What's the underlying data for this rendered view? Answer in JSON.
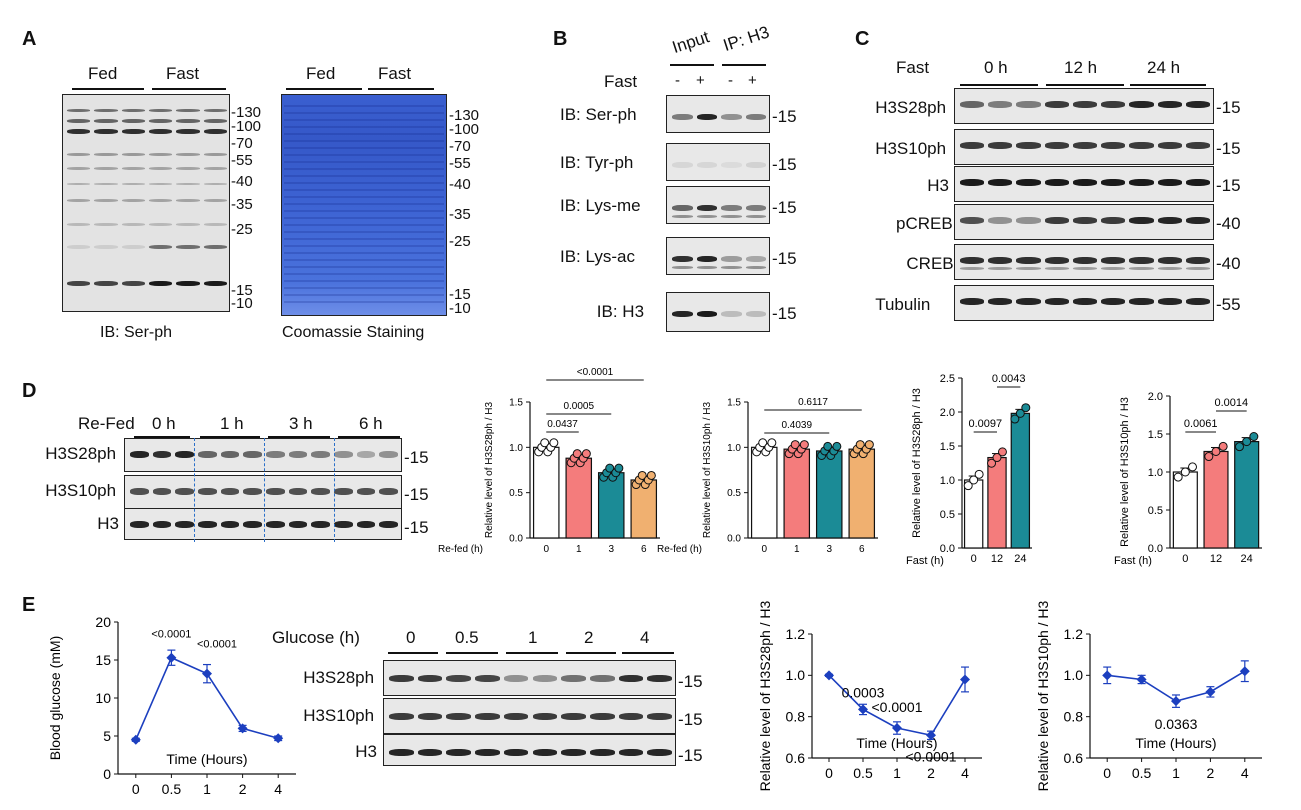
{
  "panels": {
    "A": "A",
    "B": "B",
    "C": "C",
    "D": "D",
    "E": "E"
  },
  "panelA": {
    "fed": "Fed",
    "fast": "Fast",
    "fed2": "Fed",
    "fast2": "Fast",
    "caption1": "IB: Ser-ph",
    "caption2": "Coomassie Staining",
    "markers": [
      "-130",
      "-100",
      "-70",
      "-55",
      "-40",
      "-35",
      "-25",
      "-15",
      "-10"
    ],
    "markers2": [
      "-130",
      "-100",
      "-70",
      "-55",
      "-40",
      "-35",
      "-25",
      "-15",
      "-10"
    ]
  },
  "panelB": {
    "input": "Input",
    "ip": "IP: H3",
    "fast": "Fast",
    "signs": [
      "-",
      "+",
      "-",
      "+"
    ],
    "rows": [
      "IB: Ser-ph",
      "IB: Tyr-ph",
      "IB: Lys-me",
      "IB: Lys-ac",
      "IB: H3"
    ],
    "mw": [
      "-15",
      "-15",
      "-15",
      "-15",
      "-15"
    ]
  },
  "panelC": {
    "fast": "Fast",
    "times": [
      "0 h",
      "12 h",
      "24 h"
    ],
    "rows": [
      "H3S28ph",
      "H3S10ph",
      "H3",
      "pCREB",
      "CREB",
      "Tubulin"
    ],
    "mw": [
      "-15",
      "-15",
      "-15",
      "-40",
      "-40",
      "-55"
    ]
  },
  "panelD": {
    "refed": "Re-Fed",
    "times": [
      "0 h",
      "1 h",
      "3 h",
      "6 h"
    ],
    "rows": [
      "H3S28ph",
      "H3S10ph",
      "H3"
    ],
    "mw": [
      "-15",
      "-15",
      "-15"
    ]
  },
  "chart_data": [
    {
      "type": "bar",
      "id": "D1",
      "categories": [
        "0",
        "1",
        "3",
        "6"
      ],
      "values": [
        1.0,
        0.88,
        0.72,
        0.64
      ],
      "xlabel": "Re-fed (h)",
      "ylabel": "Relative level of H3S28ph / H3",
      "ylim": [
        0,
        1.5
      ],
      "yticks": [
        "0.0",
        "0.5",
        "1.0",
        "1.5"
      ],
      "pvalues": [
        "0.0437",
        "0.0005",
        "<0.0001"
      ],
      "colors": [
        "#ffffff",
        "#f47c7c",
        "#1b8b96",
        "#f0b070"
      ]
    },
    {
      "type": "bar",
      "id": "D2",
      "categories": [
        "0",
        "1",
        "3",
        "6"
      ],
      "values": [
        1.0,
        0.98,
        0.96,
        0.98
      ],
      "xlabel": "Re-fed (h)",
      "ylabel": "Relative level of H3S10ph / H3",
      "ylim": [
        0,
        1.5
      ],
      "yticks": [
        "0.0",
        "0.5",
        "1.0",
        "1.5"
      ],
      "pvalues": [
        "0.4039",
        "0.6117"
      ],
      "colors": [
        "#ffffff",
        "#f47c7c",
        "#1b8b96",
        "#f0b070"
      ]
    },
    {
      "type": "bar",
      "id": "D3",
      "categories": [
        "0",
        "12",
        "24"
      ],
      "values": [
        1.0,
        1.33,
        1.98
      ],
      "xlabel": "Fast (h)",
      "ylabel": "Relative level of H3S28ph / H3",
      "ylim": [
        0,
        2.5
      ],
      "yticks": [
        "0.0",
        "0.5",
        "1.0",
        "1.5",
        "2.0",
        "2.5"
      ],
      "pvalues": [
        "0.0097",
        "0.0043"
      ],
      "colors": [
        "#ffffff",
        "#f47c7c",
        "#1b8b96"
      ]
    },
    {
      "type": "bar",
      "id": "D4",
      "categories": [
        "0",
        "12",
        "24"
      ],
      "values": [
        1.0,
        1.27,
        1.4
      ],
      "xlabel": "Fast (h)",
      "ylabel": "Relative level of H3S10ph / H3",
      "ylim": [
        0,
        2.0
      ],
      "yticks": [
        "0.0",
        "0.5",
        "1.0",
        "1.5",
        "2.0"
      ],
      "pvalues": [
        "0.0061",
        "0.0014"
      ],
      "colors": [
        "#ffffff",
        "#f47c7c",
        "#1b8b96"
      ]
    },
    {
      "type": "line",
      "id": "E1",
      "x": [
        "0",
        "0.5",
        "1",
        "2",
        "4"
      ],
      "values": [
        4.5,
        15.3,
        13.2,
        6.0,
        4.7
      ],
      "errors": [
        0.2,
        1.0,
        1.2,
        0.4,
        0.3
      ],
      "xlabel": "Time (Hours)",
      "ylabel": "Blood glucose (mM)",
      "ylim": [
        0,
        20
      ],
      "yticks": [
        "0",
        "5",
        "10",
        "15",
        "20"
      ],
      "annotations": [
        "<0.0001",
        "<0.0001"
      ]
    },
    {
      "type": "line",
      "id": "E2",
      "x": [
        "0",
        "0.5",
        "1",
        "2",
        "4"
      ],
      "values": [
        1.0,
        0.835,
        0.745,
        0.71,
        0.98
      ],
      "errors": [
        0.005,
        0.025,
        0.03,
        0.02,
        0.06
      ],
      "xlabel": "Time (Hours)",
      "ylabel": "Relative level of H3S28ph / H3",
      "ylim": [
        0.6,
        1.2
      ],
      "yticks": [
        "0.6",
        "0.8",
        "1.0",
        "1.2"
      ],
      "annotations": [
        "0.0003",
        "<0.0001",
        "<0.0001"
      ]
    },
    {
      "type": "line",
      "id": "E3",
      "x": [
        "0",
        "0.5",
        "1",
        "2",
        "4"
      ],
      "values": [
        1.0,
        0.98,
        0.875,
        0.92,
        1.02
      ],
      "errors": [
        0.04,
        0.02,
        0.03,
        0.025,
        0.05
      ],
      "xlabel": "Time (Hours)",
      "ylabel": "Relative level of H3S10ph / H3",
      "ylim": [
        0.6,
        1.2
      ],
      "yticks": [
        "0.6",
        "0.8",
        "1.0",
        "1.2"
      ],
      "annotations": [
        "0.0363"
      ]
    }
  ],
  "panelE": {
    "glucose": "Glucose (h)",
    "times": [
      "0",
      "0.5",
      "1",
      "2",
      "4"
    ],
    "rows": [
      "H3S28ph",
      "H3S10ph",
      "H3"
    ],
    "mw": [
      "-15",
      "-15",
      "-15"
    ]
  }
}
